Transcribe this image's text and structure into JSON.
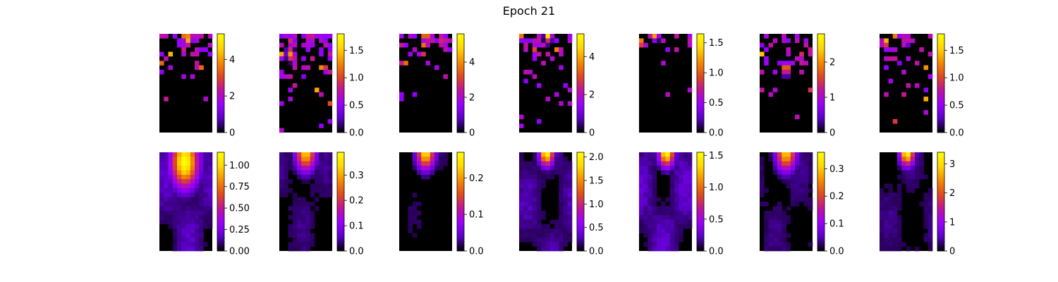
{
  "figure": {
    "title": "Epoch 21",
    "colormap": "gnuplot",
    "colormap_stops": [
      "#000000",
      "#5a00c8",
      "#9a00ff",
      "#c0129e",
      "#e04a1e",
      "#f58c00",
      "#ffd800",
      "#ffff00"
    ]
  },
  "chart_data": [
    {
      "type": "heatmap",
      "panel": "top-1",
      "grid": [
        12,
        22
      ],
      "colorbar": {
        "min": 0,
        "max": 5.4,
        "ticks": [
          0,
          2,
          4
        ],
        "tick_labels": [
          "0",
          "2",
          "4"
        ]
      },
      "pattern": "sparse",
      "hotspot": [
        0.52,
        0.05
      ],
      "intensity": 0.95,
      "density": 0.55,
      "depth": 0.35
    },
    {
      "type": "heatmap",
      "panel": "top-2",
      "grid": [
        12,
        22
      ],
      "colorbar": {
        "min": 0,
        "max": 1.8,
        "ticks": [
          0,
          0.5,
          1.0,
          1.5
        ],
        "tick_labels": [
          "0.0",
          "0.5",
          "1.0",
          "1.5"
        ]
      },
      "pattern": "sparse",
      "hotspot": [
        0.2,
        0.2
      ],
      "intensity": 0.75,
      "density": 0.65,
      "depth": 0.9
    },
    {
      "type": "heatmap",
      "panel": "top-3",
      "grid": [
        12,
        22
      ],
      "colorbar": {
        "min": 0,
        "max": 5.6,
        "ticks": [
          0,
          2,
          4
        ],
        "tick_labels": [
          "0",
          "2",
          "4"
        ]
      },
      "pattern": "sparse",
      "hotspot": [
        0.5,
        0.02
      ],
      "intensity": 0.95,
      "density": 0.55,
      "depth": 0.55
    },
    {
      "type": "heatmap",
      "panel": "top-4",
      "grid": [
        12,
        22
      ],
      "colorbar": {
        "min": 0,
        "max": 5.2,
        "ticks": [
          0,
          2,
          4
        ],
        "tick_labels": [
          "0",
          "2",
          "4"
        ]
      },
      "pattern": "sparse",
      "hotspot": [
        0.55,
        0.02
      ],
      "intensity": 0.9,
      "density": 0.5,
      "depth": 0.9
    },
    {
      "type": "heatmap",
      "panel": "top-5",
      "grid": [
        12,
        22
      ],
      "colorbar": {
        "min": 0,
        "max": 1.65,
        "ticks": [
          0,
          0.5,
          1.0,
          1.5
        ],
        "tick_labels": [
          "0.0",
          "0.5",
          "1.0",
          "1.5"
        ]
      },
      "pattern": "sparse",
      "hotspot": [
        0.3,
        0.0
      ],
      "intensity": 0.85,
      "density": 0.35,
      "depth": 0.25
    },
    {
      "type": "heatmap",
      "panel": "top-6",
      "grid": [
        12,
        22
      ],
      "colorbar": {
        "min": 0,
        "max": 2.8,
        "ticks": [
          0,
          1,
          2
        ],
        "tick_labels": [
          "0",
          "1",
          "2"
        ]
      },
      "pattern": "sparse",
      "hotspot": [
        0.5,
        0.35
      ],
      "intensity": 0.95,
      "density": 0.45,
      "depth": 0.8
    },
    {
      "type": "heatmap",
      "panel": "top-7",
      "grid": [
        12,
        22
      ],
      "colorbar": {
        "min": 0,
        "max": 1.8,
        "ticks": [
          0,
          0.5,
          1.0,
          1.5
        ],
        "tick_labels": [
          "0.0",
          "0.5",
          "1.0",
          "1.5"
        ]
      },
      "pattern": "sparse",
      "hotspot": [
        0.5,
        0.05
      ],
      "intensity": 0.7,
      "density": 0.4,
      "depth": 0.7
    },
    {
      "type": "heatmap",
      "panel": "bottom-1",
      "grid": [
        12,
        22
      ],
      "colorbar": {
        "min": 0,
        "max": 1.15,
        "ticks": [
          0,
          0.25,
          0.5,
          0.75,
          1.0
        ],
        "tick_labels": [
          "0.00",
          "0.25",
          "0.50",
          "0.75",
          "1.00"
        ]
      },
      "pattern": "smooth",
      "hotspot": [
        0.48,
        0.1
      ],
      "intensity": 1.0,
      "spread": 0.3,
      "background": 0.18
    },
    {
      "type": "heatmap",
      "panel": "bottom-2",
      "grid": [
        12,
        22
      ],
      "colorbar": {
        "min": 0,
        "max": 0.39,
        "ticks": [
          0,
          0.1,
          0.2,
          0.3
        ],
        "tick_labels": [
          "0.0",
          "0.1",
          "0.2",
          "0.3"
        ]
      },
      "pattern": "smooth",
      "hotspot": [
        0.5,
        0.0
      ],
      "intensity": 0.85,
      "spread": 0.22,
      "background": 0.12
    },
    {
      "type": "heatmap",
      "panel": "bottom-3",
      "grid": [
        12,
        22
      ],
      "colorbar": {
        "min": 0,
        "max": 0.27,
        "ticks": [
          0,
          0.1,
          0.2
        ],
        "tick_labels": [
          "0.0",
          "0.1",
          "0.2"
        ]
      },
      "pattern": "smooth",
      "hotspot": [
        0.5,
        0.0
      ],
      "intensity": 0.9,
      "spread": 0.2,
      "background": 0.08
    },
    {
      "type": "heatmap",
      "panel": "bottom-4",
      "grid": [
        12,
        22
      ],
      "colorbar": {
        "min": 0,
        "max": 2.1,
        "ticks": [
          0,
          0.5,
          1.0,
          1.5,
          2.0
        ],
        "tick_labels": [
          "0.0",
          "0.5",
          "1.0",
          "1.5",
          "2.0"
        ]
      },
      "pattern": "smooth",
      "hotspot": [
        0.52,
        0.0
      ],
      "intensity": 1.0,
      "spread": 0.16,
      "background": 0.16
    },
    {
      "type": "heatmap",
      "panel": "bottom-5",
      "grid": [
        12,
        22
      ],
      "colorbar": {
        "min": 0,
        "max": 1.55,
        "ticks": [
          0,
          0.5,
          1.0,
          1.5
        ],
        "tick_labels": [
          "0.0",
          "0.5",
          "1.0",
          "1.5"
        ]
      },
      "pattern": "smooth",
      "hotspot": [
        0.52,
        0.0
      ],
      "intensity": 1.0,
      "spread": 0.17,
      "background": 0.2
    },
    {
      "type": "heatmap",
      "panel": "bottom-6",
      "grid": [
        12,
        22
      ],
      "colorbar": {
        "min": 0,
        "max": 0.36,
        "ticks": [
          0,
          0.1,
          0.2,
          0.3
        ],
        "tick_labels": [
          "0.0",
          "0.1",
          "0.2",
          "0.3"
        ]
      },
      "pattern": "smooth",
      "hotspot": [
        0.5,
        0.0
      ],
      "intensity": 0.85,
      "spread": 0.22,
      "background": 0.12
    },
    {
      "type": "heatmap",
      "panel": "bottom-7",
      "grid": [
        12,
        22
      ],
      "colorbar": {
        "min": 0,
        "max": 3.4,
        "ticks": [
          0,
          1,
          2,
          3
        ],
        "tick_labels": [
          "0",
          "1",
          "2",
          "3"
        ]
      },
      "pattern": "smooth",
      "hotspot": [
        0.52,
        0.0
      ],
      "intensity": 1.0,
      "spread": 0.16,
      "background": 0.12
    }
  ]
}
